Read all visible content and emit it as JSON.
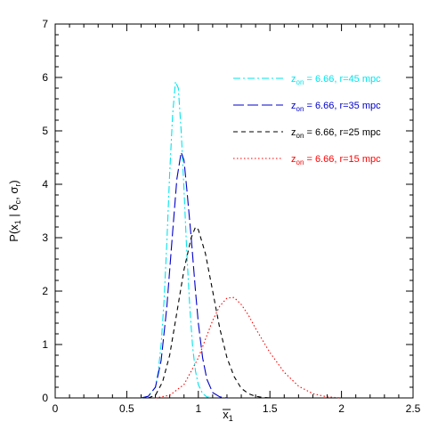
{
  "chart_data": {
    "type": "line",
    "title": "",
    "xlabel": "x̄₁",
    "ylabel": "P(x̄₁ | δₑ, σᵣ)",
    "xlim": [
      0,
      2.5
    ],
    "ylim": [
      0,
      7
    ],
    "xticks": [
      "0",
      "0.5",
      "1",
      "1.5",
      "2",
      "2.5"
    ],
    "yticks": [
      "0",
      "1",
      "2",
      "3",
      "4",
      "5",
      "6",
      "7"
    ],
    "grid": false,
    "legend_position": "top-right",
    "series": [
      {
        "name": "z_on = 6.66, r=45 mpc",
        "color": "#00e5ee",
        "dash": "dash-dot",
        "x": [
          0.6,
          0.65,
          0.7,
          0.72,
          0.74,
          0.76,
          0.78,
          0.8,
          0.82,
          0.84,
          0.86,
          0.88,
          0.9,
          0.92,
          0.94,
          0.96,
          0.98,
          1.0,
          1.03,
          1.06,
          1.1
        ],
        "y": [
          0.0,
          0.03,
          0.2,
          0.5,
          1.0,
          1.8,
          2.9,
          4.2,
          5.3,
          5.92,
          5.8,
          5.0,
          3.9,
          2.7,
          1.7,
          0.95,
          0.5,
          0.25,
          0.08,
          0.02,
          0.0
        ]
      },
      {
        "name": "z_on = 6.66, r=35 mpc",
        "color": "#0000cc",
        "dash": "long-dash",
        "x": [
          0.6,
          0.65,
          0.7,
          0.74,
          0.78,
          0.82,
          0.85,
          0.88,
          0.9,
          0.92,
          0.95,
          0.98,
          1.0,
          1.03,
          1.06,
          1.1,
          1.15,
          1.2
        ],
        "y": [
          0.0,
          0.03,
          0.2,
          0.7,
          1.7,
          3.1,
          4.1,
          4.6,
          4.45,
          3.9,
          3.0,
          2.0,
          1.4,
          0.75,
          0.35,
          0.1,
          0.02,
          0.0
        ]
      },
      {
        "name": "z_on = 6.66, r=25 mpc",
        "color": "#000000",
        "dash": "short-dash",
        "x": [
          0.65,
          0.7,
          0.75,
          0.8,
          0.85,
          0.9,
          0.95,
          0.98,
          1.0,
          1.05,
          1.1,
          1.15,
          1.2,
          1.25,
          1.3,
          1.35,
          1.4,
          1.45,
          1.5
        ],
        "y": [
          0.0,
          0.05,
          0.3,
          0.8,
          1.6,
          2.4,
          3.0,
          3.2,
          3.15,
          2.7,
          2.0,
          1.3,
          0.75,
          0.4,
          0.18,
          0.08,
          0.03,
          0.01,
          0.0
        ]
      },
      {
        "name": "z_on = 6.66, r=15 mpc",
        "color": "#ff0000",
        "dash": "dotted",
        "x": [
          0.7,
          0.8,
          0.9,
          1.0,
          1.05,
          1.1,
          1.15,
          1.2,
          1.25,
          1.3,
          1.35,
          1.4,
          1.5,
          1.6,
          1.7,
          1.8,
          1.9,
          2.0
        ],
        "y": [
          0.0,
          0.05,
          0.25,
          0.75,
          1.1,
          1.45,
          1.72,
          1.87,
          1.88,
          1.75,
          1.55,
          1.3,
          0.85,
          0.48,
          0.22,
          0.08,
          0.02,
          0.0
        ]
      }
    ],
    "legend": [
      {
        "prefix": "z",
        "sub": "on",
        "rest": " = 6.66, r=45 mpc"
      },
      {
        "prefix": "z",
        "sub": "on",
        "rest": " = 6.66, r=35 mpc"
      },
      {
        "prefix": "z",
        "sub": "on",
        "rest": " = 6.66, r=25 mpc"
      },
      {
        "prefix": "z",
        "sub": "on",
        "rest": " = 6.66, r=15 mpc"
      }
    ]
  }
}
